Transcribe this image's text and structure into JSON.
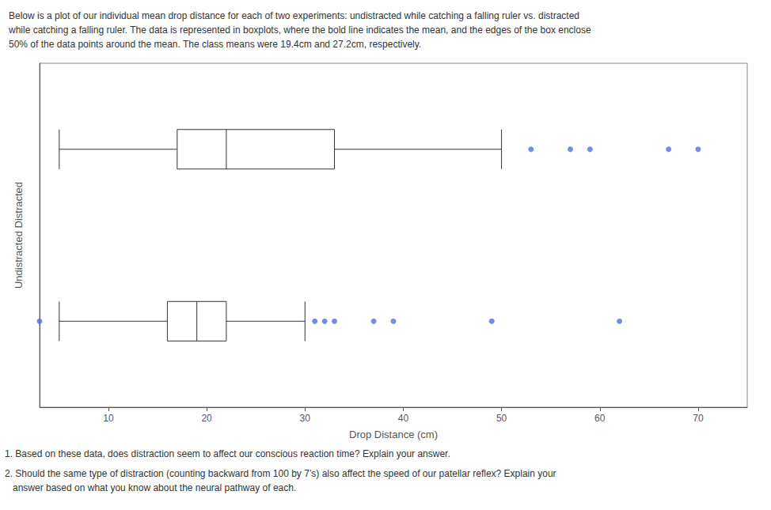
{
  "chart_data": {
    "type": "boxplot",
    "title": "Below is a plot of our individual mean drop distance for each of two experiments: undistracted while catching a falling ruler vs. distracted\nwhile catching a falling ruler. The data is represented in boxplots, where the bold line indicates the mean, and the edges of the box enclose\n50% of the data points around the mean. The class means were 19.4cm and 27.2cm, respectively.",
    "annotations": [
      "1. Based on these data, does distraction seem to affect our conscious reaction time? Explain your answer.",
      "2. Should the same type of distraction (counting backward from 100 by 7’s) also affect the speed of our patellar reflex? Explain your\n   answer based on what you know about the neural pathway of each."
    ],
    "xlabel": "Drop Distance (cm)",
    "ylabel": "Undistracted Distracted",
    "categories": [
      null,
      null
    ],
    "values": [
      [
        5,
        17,
        22,
        33,
        50
      ],
      [
        5,
        16,
        19,
        22,
        30
      ]
    ],
    "outliers": [
      [
        53,
        57,
        59,
        67,
        70
      ],
      [
        3,
        31,
        32,
        33,
        37,
        39,
        49,
        62
      ]
    ],
    "xlim": [
      3,
      75
    ],
    "xticks": [
      10,
      20,
      30,
      40,
      50,
      60,
      70
    ],
    "tick_labels": "x",
    "grid": false
  }
}
